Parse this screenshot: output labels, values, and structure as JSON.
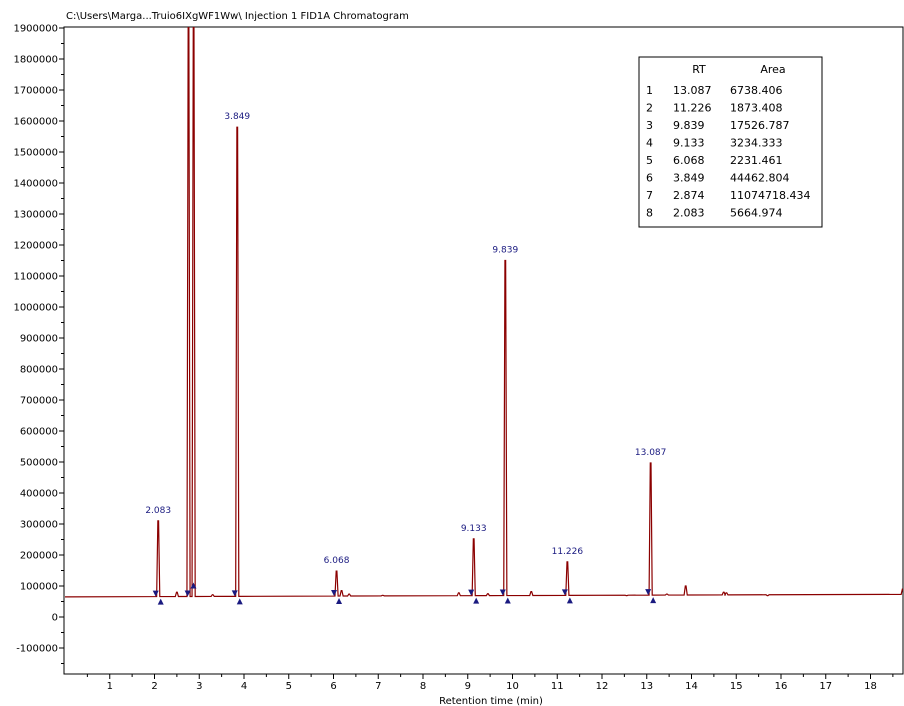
{
  "chart_data": {
    "type": "line",
    "title": "C:\\Users\\Marga...Truio6IXgWF1Ww\\ Injection 1 FID1A Chromatogram",
    "xlabel": "Retention time (min)",
    "ylabel": "",
    "xlim": [
      0,
      18.75
    ],
    "ylim": [
      -180000,
      1910000
    ],
    "x_ticks": [
      1,
      2,
      3,
      4,
      5,
      6,
      7,
      8,
      9,
      10,
      11,
      12,
      13,
      14,
      15,
      16,
      17,
      18
    ],
    "y_ticks": [
      -100000,
      0,
      100000,
      200000,
      300000,
      400000,
      500000,
      600000,
      700000,
      800000,
      900000,
      1000000,
      1100000,
      1200000,
      1300000,
      1400000,
      1500000,
      1600000,
      1700000,
      1800000,
      1900000
    ],
    "baseline": 65000,
    "series_color": "#8b0000",
    "marker_color": "#1a1a80",
    "peaks": [
      {
        "rt": 2.083,
        "height": 310000,
        "label": "2.083"
      },
      {
        "rt": 2.76,
        "height": 1910000,
        "label": ""
      },
      {
        "rt": 2.874,
        "height": 1910000,
        "label": ""
      },
      {
        "rt": 3.849,
        "height": 1580000,
        "label": "3.849"
      },
      {
        "rt": 6.068,
        "height": 148000,
        "label": "6.068"
      },
      {
        "rt": 9.133,
        "height": 252000,
        "label": "9.133"
      },
      {
        "rt": 9.839,
        "height": 1150000,
        "label": "9.839"
      },
      {
        "rt": 11.226,
        "height": 178000,
        "label": "11.226"
      },
      {
        "rt": 13.087,
        "height": 497000,
        "label": "13.087"
      },
      {
        "rt": 13.87,
        "height": 100000,
        "label": ""
      }
    ],
    "table": {
      "headers": [
        "",
        "RT",
        "Area"
      ],
      "rows": [
        [
          "1",
          "13.087",
          "6738.406"
        ],
        [
          "2",
          "11.226",
          "1873.408"
        ],
        [
          "3",
          "9.839",
          "17526.787"
        ],
        [
          "4",
          "9.133",
          "3234.333"
        ],
        [
          "5",
          "6.068",
          "2231.461"
        ],
        [
          "6",
          "3.849",
          "44462.804"
        ],
        [
          "7",
          "2.874",
          "11074718.434"
        ],
        [
          "8",
          "2.083",
          "5664.974"
        ]
      ]
    }
  }
}
